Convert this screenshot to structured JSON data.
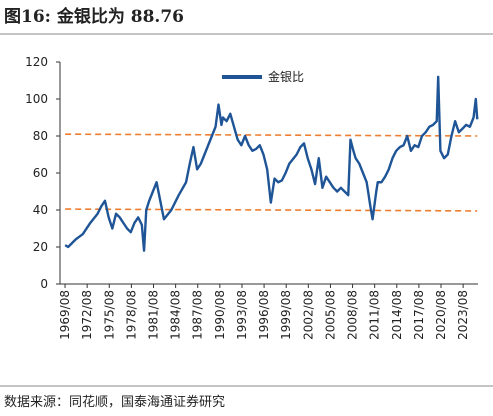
{
  "title": "图16:  金银比为 88.76",
  "source": "数据来源：同花顺，国泰海通证券研究",
  "chart_data": {
    "type": "line",
    "x": [
      1969.6,
      1970,
      1971,
      1972,
      1973,
      1974,
      1974.5,
      1975,
      1975.5,
      1976,
      1976.5,
      1977,
      1978,
      1978.5,
      1979,
      1979.5,
      1980,
      1980.3,
      1980.6,
      1981,
      1981.5,
      1982,
      1982.5,
      1983,
      1984,
      1985,
      1986,
      1986.5,
      1987,
      1987.5,
      1988,
      1988.5,
      1989,
      1989.5,
      1990,
      1990.4,
      1990.8,
      1991,
      1991.5,
      1992,
      1992.5,
      1993,
      1993.5,
      1994,
      1994.5,
      1995,
      1995.5,
      1996,
      1996.5,
      1997,
      1997.5,
      1998,
      1998.5,
      1999,
      1999.5,
      2000,
      2001,
      2001.5,
      2002,
      2002.5,
      2003,
      2003.5,
      2004,
      2004.5,
      2005,
      2006,
      2006.5,
      2007,
      2007.5,
      2008,
      2008.3,
      2008.7,
      2009,
      2009.5,
      2010,
      2010.5,
      2011,
      2011.3,
      2011.8,
      2012,
      2012.5,
      2013,
      2013.5,
      2014,
      2014.5,
      2015,
      2015.5,
      2016,
      2016.5,
      2017,
      2017.5,
      2018,
      2018.5,
      2019,
      2019.5,
      2020,
      2020.2,
      2020.5,
      2021,
      2021.5,
      2022,
      2022.5,
      2023,
      2023.5,
      2024,
      2024.5,
      2025,
      2025.3,
      2025.5
    ],
    "series": [
      {
        "name": "金银比",
        "color": "#1f5596",
        "values": [
          21,
          20,
          24,
          27,
          33,
          38,
          42,
          45,
          36,
          30,
          38,
          36,
          30,
          28,
          33,
          36,
          32,
          18,
          40,
          45,
          50,
          55,
          45,
          35,
          40,
          48,
          55,
          65,
          74,
          62,
          65,
          70,
          75,
          80,
          85,
          97,
          86,
          90,
          88,
          92,
          85,
          78,
          75,
          80,
          75,
          72,
          73,
          75,
          70,
          62,
          44,
          57,
          55,
          56,
          60,
          65,
          70,
          74,
          76,
          68,
          62,
          54,
          68,
          52,
          58,
          52,
          50,
          52,
          50,
          48,
          78,
          72,
          68,
          65,
          60,
          55,
          42,
          35,
          50,
          55,
          55,
          58,
          62,
          68,
          72,
          74,
          75,
          80,
          72,
          75,
          74,
          80,
          82,
          85,
          86,
          88,
          112,
          72,
          68,
          70,
          80,
          88,
          82,
          84,
          86,
          85,
          90,
          100,
          89
        ]
      }
    ],
    "reference_lines": [
      {
        "color": "#ed7d31",
        "x": [
          1969.6,
          2025.5
        ],
        "values": [
          81,
          80
        ]
      },
      {
        "color": "#ed7d31",
        "x": [
          1969.6,
          2025.5
        ],
        "values": [
          40.5,
          39.5
        ]
      }
    ],
    "xlim": [
      1968.9,
      2025.6
    ],
    "xticks": [
      {
        "value": 1969.583,
        "label": "1969/08"
      },
      {
        "value": 1972.583,
        "label": "1972/08"
      },
      {
        "value": 1975.583,
        "label": "1975/08"
      },
      {
        "value": 1978.583,
        "label": "1978/08"
      },
      {
        "value": 1981.583,
        "label": "1981/08"
      },
      {
        "value": 1984.583,
        "label": "1984/08"
      },
      {
        "value": 1987.583,
        "label": "1987/08"
      },
      {
        "value": 1990.583,
        "label": "1990/08"
      },
      {
        "value": 1993.583,
        "label": "1993/08"
      },
      {
        "value": 1996.583,
        "label": "1996/08"
      },
      {
        "value": 1999.583,
        "label": "1999/08"
      },
      {
        "value": 2002.583,
        "label": "2002/08"
      },
      {
        "value": 2005.583,
        "label": "2005/08"
      },
      {
        "value": 2008.583,
        "label": "2008/08"
      },
      {
        "value": 2011.583,
        "label": "2011/08"
      },
      {
        "value": 2014.583,
        "label": "2014/08"
      },
      {
        "value": 2017.583,
        "label": "2017/08"
      },
      {
        "value": 2020.583,
        "label": "2020/08"
      },
      {
        "value": 2023.583,
        "label": "2023/08"
      }
    ],
    "ylim": [
      0,
      120
    ],
    "yticks": [
      0,
      20,
      40,
      60,
      80,
      100,
      120
    ],
    "legend": "top"
  }
}
